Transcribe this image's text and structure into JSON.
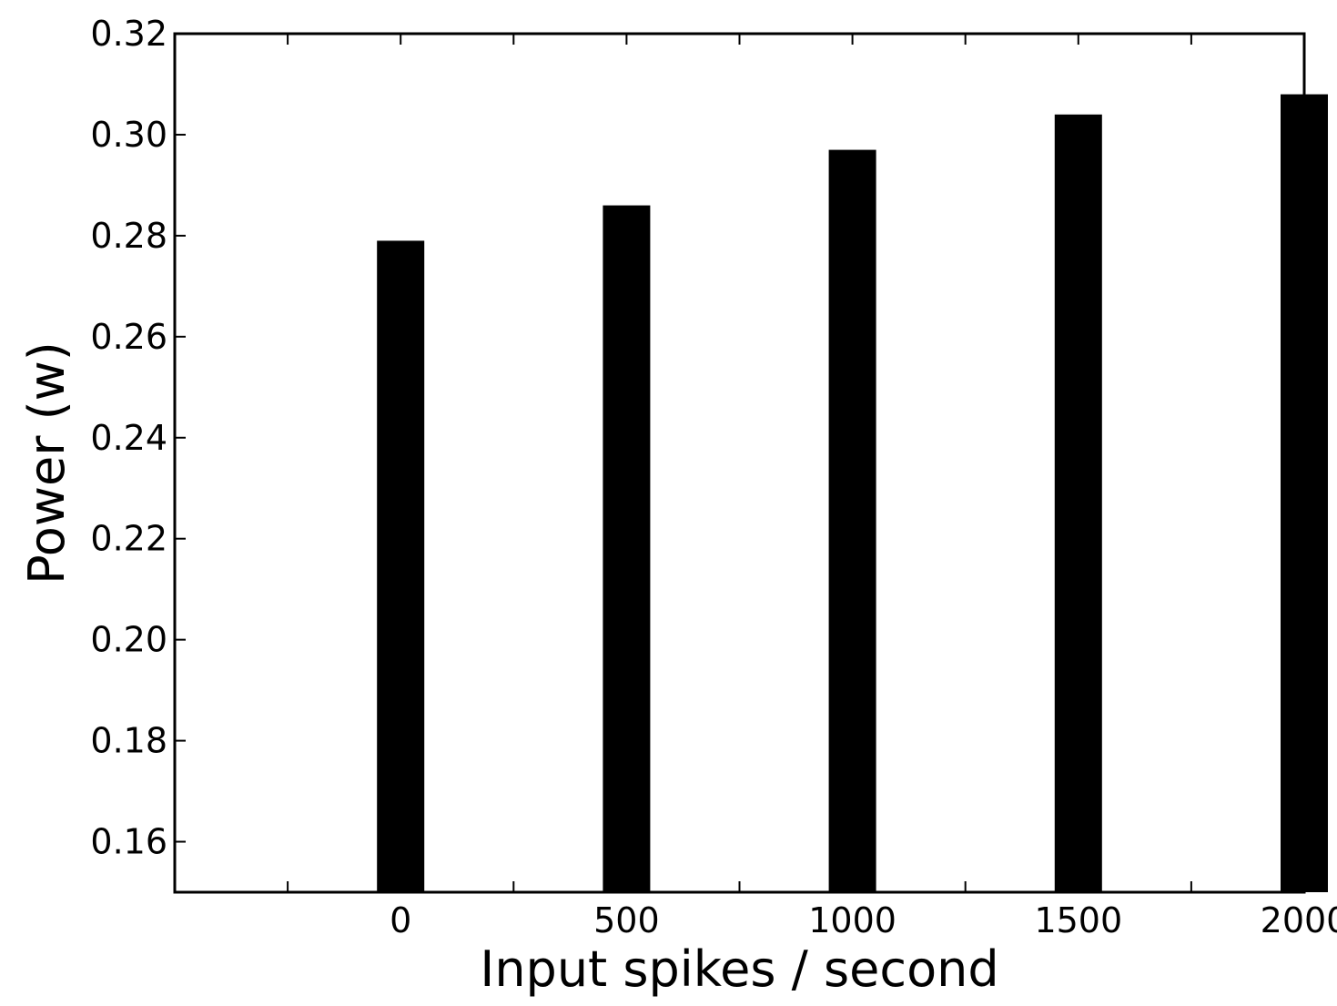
{
  "chart_data": {
    "type": "bar",
    "categories": [
      "0",
      "500",
      "1000",
      "1500",
      "2000"
    ],
    "x": [
      0,
      500,
      1000,
      1500,
      2000
    ],
    "values": [
      0.279,
      0.286,
      0.297,
      0.304,
      0.308
    ],
    "title": "",
    "xlabel": "Input spikes / second",
    "ylabel": "Power (w)",
    "xlim": [
      -500,
      2000
    ],
    "ylim": [
      0.15,
      0.32
    ],
    "xticks": [
      "0",
      "500",
      "1000",
      "1500",
      "2000"
    ],
    "yticks": [
      "0.16",
      "0.18",
      "0.20",
      "0.22",
      "0.24",
      "0.26",
      "0.28",
      "0.30",
      "0.32"
    ],
    "ytick_values": [
      0.16,
      0.18,
      0.2,
      0.22,
      0.24,
      0.26,
      0.28,
      0.3,
      0.32
    ],
    "grid": false,
    "legend": "none",
    "colors": {
      "bar": "#000000",
      "axes": "#000000",
      "background": "#ffffff"
    }
  }
}
